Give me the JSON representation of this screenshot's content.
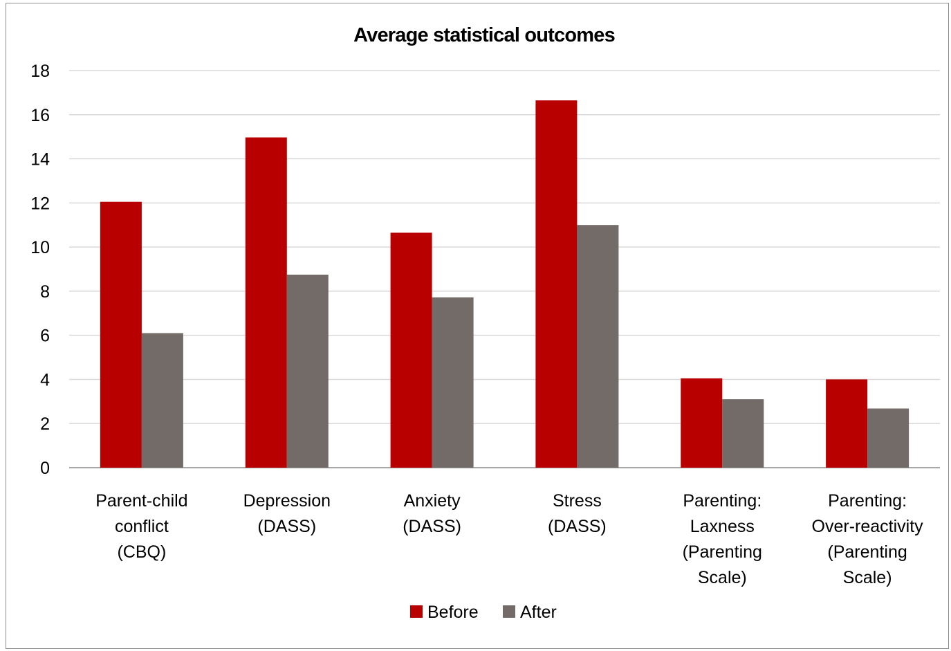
{
  "chart_data": {
    "type": "bar",
    "title": "Average statistical  outcomes",
    "categories": [
      [
        "Parent-child",
        "conflict",
        "(CBQ)"
      ],
      [
        "Depression",
        "(DASS)"
      ],
      [
        "Anxiety",
        "(DASS)"
      ],
      [
        "Stress",
        "(DASS)"
      ],
      [
        "Parenting:",
        "Laxness",
        "(Parenting",
        "Scale)"
      ],
      [
        "Parenting:",
        "Over-reactivity",
        "(Parenting",
        "Scale)"
      ]
    ],
    "series": [
      {
        "name": "Before",
        "color": "#b80000",
        "values": [
          12.05,
          14.97,
          10.65,
          16.65,
          4.05,
          4.0
        ]
      },
      {
        "name": "After",
        "color": "#736b68",
        "values": [
          6.1,
          8.75,
          7.72,
          11.0,
          3.1,
          2.68
        ]
      }
    ],
    "ylim": [
      0,
      18
    ],
    "yticks": [
      "0",
      "2",
      "4",
      "6",
      "8",
      "10",
      "12",
      "14",
      "16",
      "18"
    ],
    "grid": true,
    "legend_position": "bottom"
  }
}
